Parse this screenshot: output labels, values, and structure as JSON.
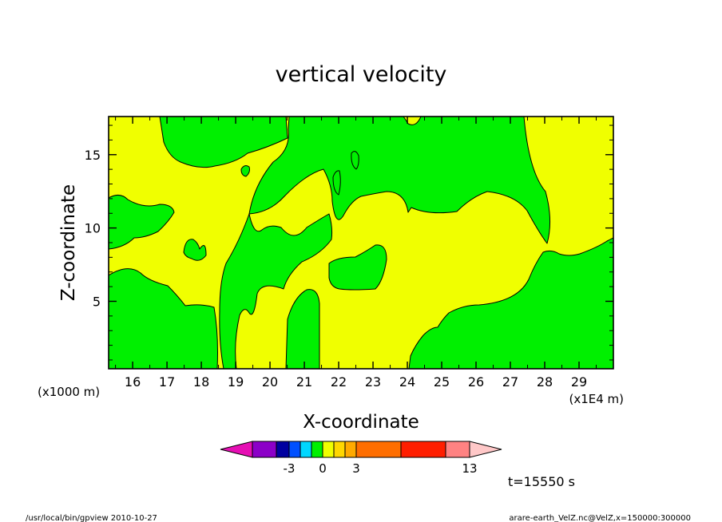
{
  "chart_data": {
    "type": "contour",
    "title": "vertical velocity",
    "xlabel": "X-coordinate",
    "ylabel": "Z-coordinate",
    "x_unit_left": "(x1000 m)",
    "x_unit_right": "(x1E4 m)",
    "xlim": [
      15.3,
      30.0
    ],
    "ylim": [
      0.4,
      17.6
    ],
    "x_ticks": [
      16,
      17,
      18,
      19,
      20,
      21,
      22,
      23,
      24,
      25,
      26,
      27,
      28,
      29
    ],
    "x_tick_labels": [
      "16",
      "17",
      "18",
      "19",
      "20",
      "21",
      "22",
      "23",
      "24",
      "25",
      "26",
      "27",
      "28",
      "29"
    ],
    "y_ticks": [
      5,
      10,
      15
    ],
    "y_tick_labels": [
      "5",
      "10",
      "15"
    ],
    "fill_colors": {
      "background": "#f0ff00",
      "regions": "#00f000"
    },
    "colorbar": {
      "colors": [
        "#e60fb4",
        "#8c00c8",
        "#0000a0",
        "#0050ff",
        "#00d7ff",
        "#00f000",
        "#f0ff00",
        "#ffd700",
        "#ffaa00",
        "#ff6e00",
        "#ff1e00",
        "#ff8282",
        "#ffc8c8"
      ],
      "tick_labels": [
        "-3",
        "0",
        "3",
        "13"
      ]
    },
    "time_label": "t=15550 s",
    "footer_left": "/usr/local/bin/gpview   2010-10-27",
    "footer_right": "arare-earth_VelZ.nc@VelZ,x=150000:300000"
  }
}
